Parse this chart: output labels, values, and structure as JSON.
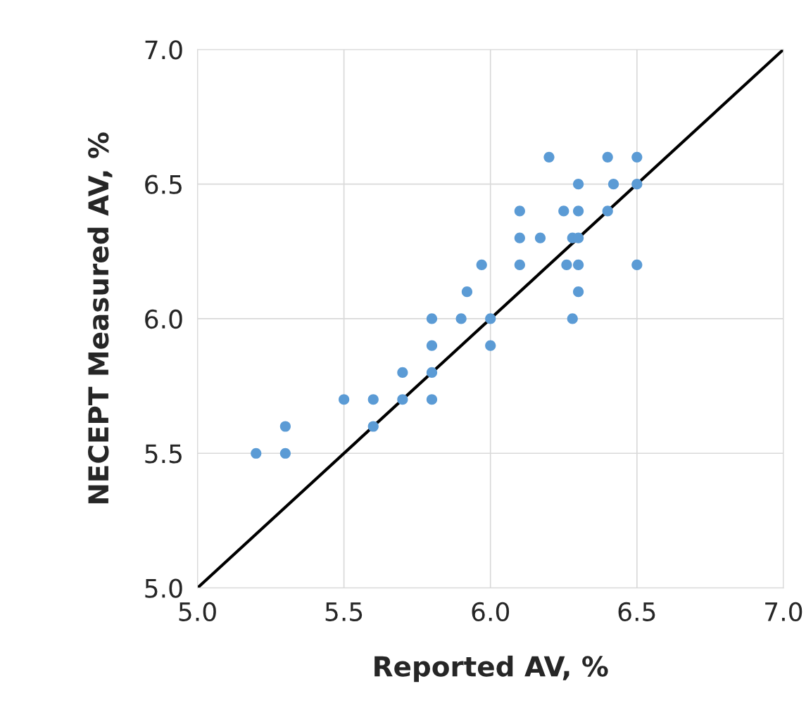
{
  "chart_data": {
    "type": "scatter",
    "xlabel": "Reported AV, %",
    "ylabel": "NECEPT Measured AV, %",
    "xlim": [
      5.0,
      7.0
    ],
    "ylim": [
      5.0,
      7.0
    ],
    "xticks": [
      {
        "value": 5.0,
        "label": "5.0"
      },
      {
        "value": 5.5,
        "label": "5.5"
      },
      {
        "value": 6.0,
        "label": "6.0"
      },
      {
        "value": 6.5,
        "label": "6.5"
      },
      {
        "value": 7.0,
        "label": "7.0"
      }
    ],
    "yticks": [
      {
        "value": 5.0,
        "label": "5.0"
      },
      {
        "value": 5.5,
        "label": "5.5"
      },
      {
        "value": 6.0,
        "label": "6.0"
      },
      {
        "value": 6.5,
        "label": "6.5"
      },
      {
        "value": 7.0,
        "label": "7.0"
      }
    ],
    "grid": true,
    "series": [
      {
        "marker": "circle",
        "color": "#5b9bd5",
        "x": [
          5.2,
          5.3,
          5.3,
          5.5,
          5.6,
          5.6,
          5.7,
          5.7,
          5.8,
          5.8,
          5.8,
          5.8,
          5.9,
          5.92,
          5.97,
          6.0,
          6.0,
          6.1,
          6.1,
          6.1,
          6.17,
          6.2,
          6.25,
          6.26,
          6.28,
          6.28,
          6.3,
          6.3,
          6.3,
          6.3,
          6.3,
          6.4,
          6.4,
          6.42,
          6.5,
          6.5,
          6.5
        ],
        "values": [
          5.5,
          5.6,
          5.5,
          5.7,
          5.7,
          5.6,
          5.8,
          5.7,
          6.0,
          5.9,
          5.8,
          5.7,
          6.0,
          6.1,
          6.2,
          6.0,
          5.9,
          6.4,
          6.3,
          6.2,
          6.3,
          6.6,
          6.4,
          6.2,
          6.3,
          6.0,
          6.5,
          6.4,
          6.3,
          6.2,
          6.1,
          6.6,
          6.4,
          6.5,
          6.6,
          6.5,
          6.2
        ]
      },
      {
        "type": "line",
        "color": "#000000",
        "x": [
          5.0,
          7.0
        ],
        "values": [
          5.0,
          7.0
        ],
        "line_style": "solid",
        "marker": "none"
      }
    ]
  }
}
